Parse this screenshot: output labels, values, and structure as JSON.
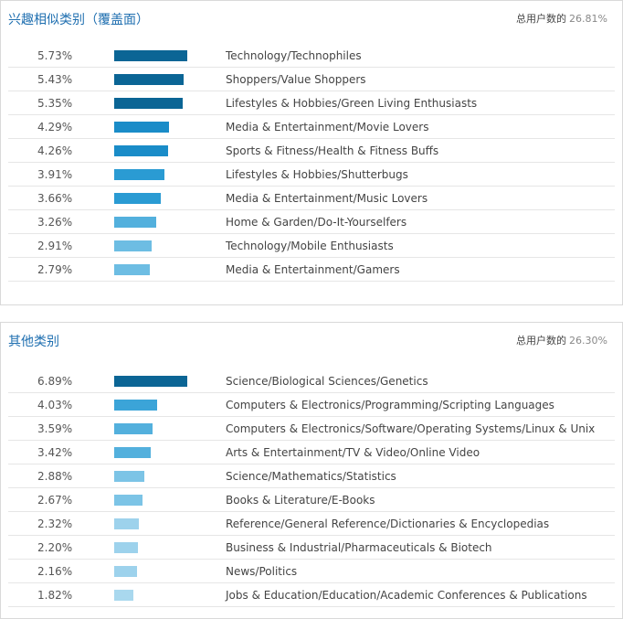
{
  "panels": [
    {
      "title": "兴趣相似类别（覆盖面）",
      "total_label": "总用户数的",
      "total_value": "26.81%",
      "max_value": 5.73,
      "rows": [
        {
          "pct": "5.73%",
          "value": 5.73,
          "label": "Technology/Technophiles",
          "color": "#0b6595"
        },
        {
          "pct": "5.43%",
          "value": 5.43,
          "label": "Shoppers/Value Shoppers",
          "color": "#0b6595"
        },
        {
          "pct": "5.35%",
          "value": 5.35,
          "label": "Lifestyles & Hobbies/Green Living Enthusiasts",
          "color": "#0b6595"
        },
        {
          "pct": "4.29%",
          "value": 4.29,
          "label": "Media & Entertainment/Movie Lovers",
          "color": "#1a8cc8"
        },
        {
          "pct": "4.26%",
          "value": 4.26,
          "label": "Sports & Fitness/Health & Fitness Buffs",
          "color": "#1a8cc8"
        },
        {
          "pct": "3.91%",
          "value": 3.91,
          "label": "Lifestyles & Hobbies/Shutterbugs",
          "color": "#2a9bd3"
        },
        {
          "pct": "3.66%",
          "value": 3.66,
          "label": "Media & Entertainment/Music Lovers",
          "color": "#2a9bd3"
        },
        {
          "pct": "3.26%",
          "value": 3.26,
          "label": "Home & Garden/Do-It-Yourselfers",
          "color": "#53b0dd"
        },
        {
          "pct": "2.91%",
          "value": 2.91,
          "label": "Technology/Mobile Enthusiasts",
          "color": "#6dbde3"
        },
        {
          "pct": "2.79%",
          "value": 2.79,
          "label": "Media & Entertainment/Gamers",
          "color": "#6dbde3"
        }
      ]
    },
    {
      "title": "其他类别",
      "total_label": "总用户数的",
      "total_value": "26.30%",
      "max_value": 6.89,
      "rows": [
        {
          "pct": "6.89%",
          "value": 6.89,
          "label": "Science/Biological Sciences/Genetics",
          "color": "#0b6595"
        },
        {
          "pct": "4.03%",
          "value": 4.03,
          "label": "Computers & Electronics/Programming/Scripting Languages",
          "color": "#3ba4d8"
        },
        {
          "pct": "3.59%",
          "value": 3.59,
          "label": "Computers & Electronics/Software/Operating Systems/Linux & Unix",
          "color": "#53b0dd"
        },
        {
          "pct": "3.42%",
          "value": 3.42,
          "label": "Arts & Entertainment/TV & Video/Online Video",
          "color": "#53b0dd"
        },
        {
          "pct": "2.88%",
          "value": 2.88,
          "label": "Science/Mathematics/Statistics",
          "color": "#7cc4e6"
        },
        {
          "pct": "2.67%",
          "value": 2.67,
          "label": "Books & Literature/E-Books",
          "color": "#7cc4e6"
        },
        {
          "pct": "2.32%",
          "value": 2.32,
          "label": "Reference/General Reference/Dictionaries & Encyclopedias",
          "color": "#9dd2ec"
        },
        {
          "pct": "2.20%",
          "value": 2.2,
          "label": "Business & Industrial/Pharmaceuticals & Biotech",
          "color": "#9dd2ec"
        },
        {
          "pct": "2.16%",
          "value": 2.16,
          "label": "News/Politics",
          "color": "#9dd2ec"
        },
        {
          "pct": "1.82%",
          "value": 1.82,
          "label": "Jobs & Education/Education/Academic Conferences & Publications",
          "color": "#a9d8ee"
        }
      ]
    }
  ]
}
